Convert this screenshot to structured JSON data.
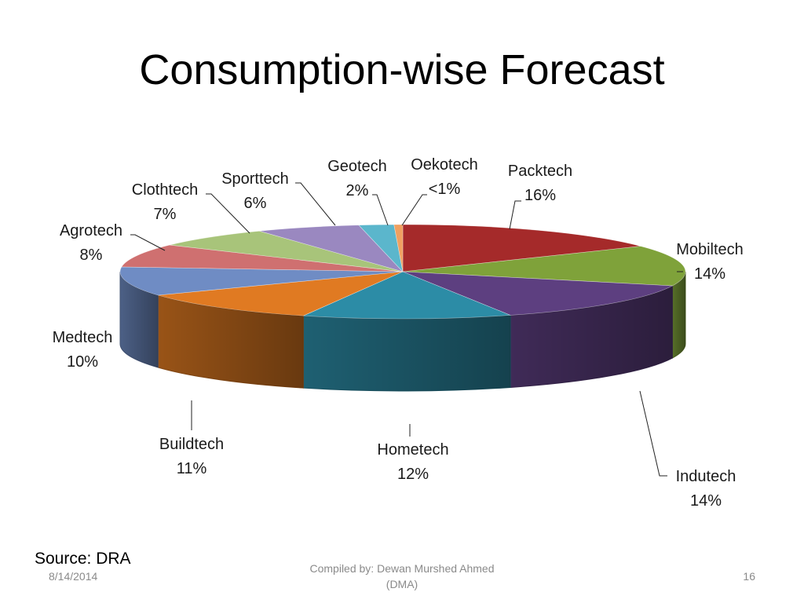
{
  "slide": {
    "title": "Consumption-wise Forecast",
    "source": "Source: DRA",
    "footer": {
      "date": "8/14/2014",
      "compiled_line1": "Compiled by: Dewan Murshed Ahmed",
      "compiled_line2": "(DMA)",
      "page": "16"
    }
  },
  "chart_data": {
    "type": "pie",
    "style": "3d-exploded-none",
    "title": "",
    "legend": "none",
    "slices": [
      {
        "name": "Packtech",
        "value": 16,
        "label": "16%",
        "color": "#a52a2a"
      },
      {
        "name": "Mobiltech",
        "value": 14,
        "label": "14%",
        "color": "#7fa23a"
      },
      {
        "name": "Indutech",
        "value": 14,
        "label": "14%",
        "color": "#5d3f80"
      },
      {
        "name": "Hometech",
        "value": 12,
        "label": "12%",
        "color": "#2c8ca6"
      },
      {
        "name": "Buildtech",
        "value": 11,
        "label": "11%",
        "color": "#e07a22"
      },
      {
        "name": "Medtech",
        "value": 10,
        "label": "10%",
        "color": "#6f8cc4"
      },
      {
        "name": "Agrotech",
        "value": 8,
        "label": "8%",
        "color": "#cf7070"
      },
      {
        "name": "Clothtech",
        "value": 7,
        "label": "7%",
        "color": "#a8c47a"
      },
      {
        "name": "Sporttech",
        "value": 6,
        "label": "6%",
        "color": "#9a88c0"
      },
      {
        "name": "Geotech",
        "value": 2,
        "label": "2%",
        "color": "#5bb6cc"
      },
      {
        "name": "Oekotech",
        "value": 0.5,
        "label": "<1%",
        "color": "#f0a060"
      }
    ]
  }
}
